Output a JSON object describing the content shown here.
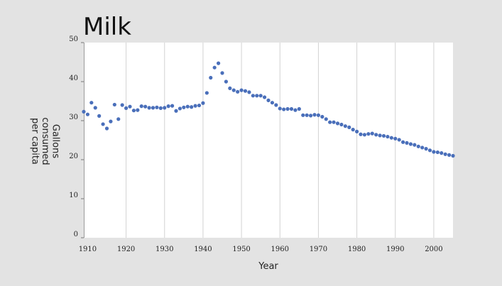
{
  "chart_data": {
    "type": "scatter",
    "title": "Milk",
    "xlabel": "Year",
    "ylabel_lines": [
      "Gallons",
      "consumed",
      "per capita"
    ],
    "xlim": [
      1909,
      2005
    ],
    "ylim": [
      0,
      50
    ],
    "xticks": [
      1910,
      1920,
      1930,
      1940,
      1950,
      1960,
      1970,
      1980,
      1990,
      2000
    ],
    "yticks": [
      0,
      10,
      20,
      30,
      40,
      50
    ],
    "grid": "vertical",
    "marker_color": "#4a6fba",
    "series": [
      {
        "x": [
          1909,
          1910,
          1911,
          1912,
          1913,
          1914,
          1915,
          1916,
          1917,
          1918,
          1919,
          1920,
          1921,
          1922,
          1923,
          1924,
          1925,
          1926,
          1927,
          1928,
          1929,
          1930,
          1931,
          1932,
          1933,
          1934,
          1935,
          1936,
          1937,
          1938,
          1939,
          1940,
          1941,
          1942,
          1943,
          1944,
          1945,
          1946,
          1947,
          1948,
          1949,
          1950,
          1951,
          1952,
          1953,
          1954,
          1955,
          1956,
          1957,
          1958,
          1959,
          1960,
          1961,
          1962,
          1963,
          1964,
          1965,
          1966,
          1967,
          1968,
          1969,
          1970,
          1971,
          1972,
          1973,
          1974,
          1975,
          1976,
          1977,
          1978,
          1979,
          1980,
          1981,
          1982,
          1983,
          1984,
          1985,
          1986,
          1987,
          1988,
          1989,
          1990,
          1991,
          1992,
          1993,
          1994,
          1995,
          1996,
          1997,
          1998,
          1999,
          2000,
          2001,
          2002,
          2003,
          2004,
          2005
        ],
        "y": [
          32.3,
          31.6,
          34.6,
          33.3,
          31.2,
          29.1,
          28.0,
          29.8,
          34.1,
          30.4,
          34.0,
          33.2,
          33.6,
          32.6,
          32.7,
          33.7,
          33.6,
          33.3,
          33.3,
          33.4,
          33.2,
          33.3,
          33.7,
          33.8,
          32.5,
          33.1,
          33.4,
          33.6,
          33.5,
          33.8,
          33.9,
          34.5,
          37.1,
          41.0,
          43.6,
          44.7,
          42.2,
          40.0,
          38.3,
          37.8,
          37.4,
          37.8,
          37.6,
          37.3,
          36.4,
          36.4,
          36.4,
          36.0,
          35.2,
          34.6,
          34.0,
          33.1,
          32.9,
          33.0,
          33.0,
          32.7,
          33.0,
          31.4,
          31.4,
          31.3,
          31.5,
          31.4,
          31.0,
          30.4,
          29.6,
          29.6,
          29.3,
          29.0,
          28.6,
          28.3,
          27.7,
          27.2,
          26.5,
          26.4,
          26.6,
          26.7,
          26.4,
          26.2,
          26.1,
          25.9,
          25.6,
          25.4,
          25.1,
          24.5,
          24.3,
          24.0,
          23.8,
          23.4,
          23.1,
          22.8,
          22.4,
          22.0,
          21.9,
          21.7,
          21.4,
          21.2,
          21.0
        ]
      }
    ]
  }
}
